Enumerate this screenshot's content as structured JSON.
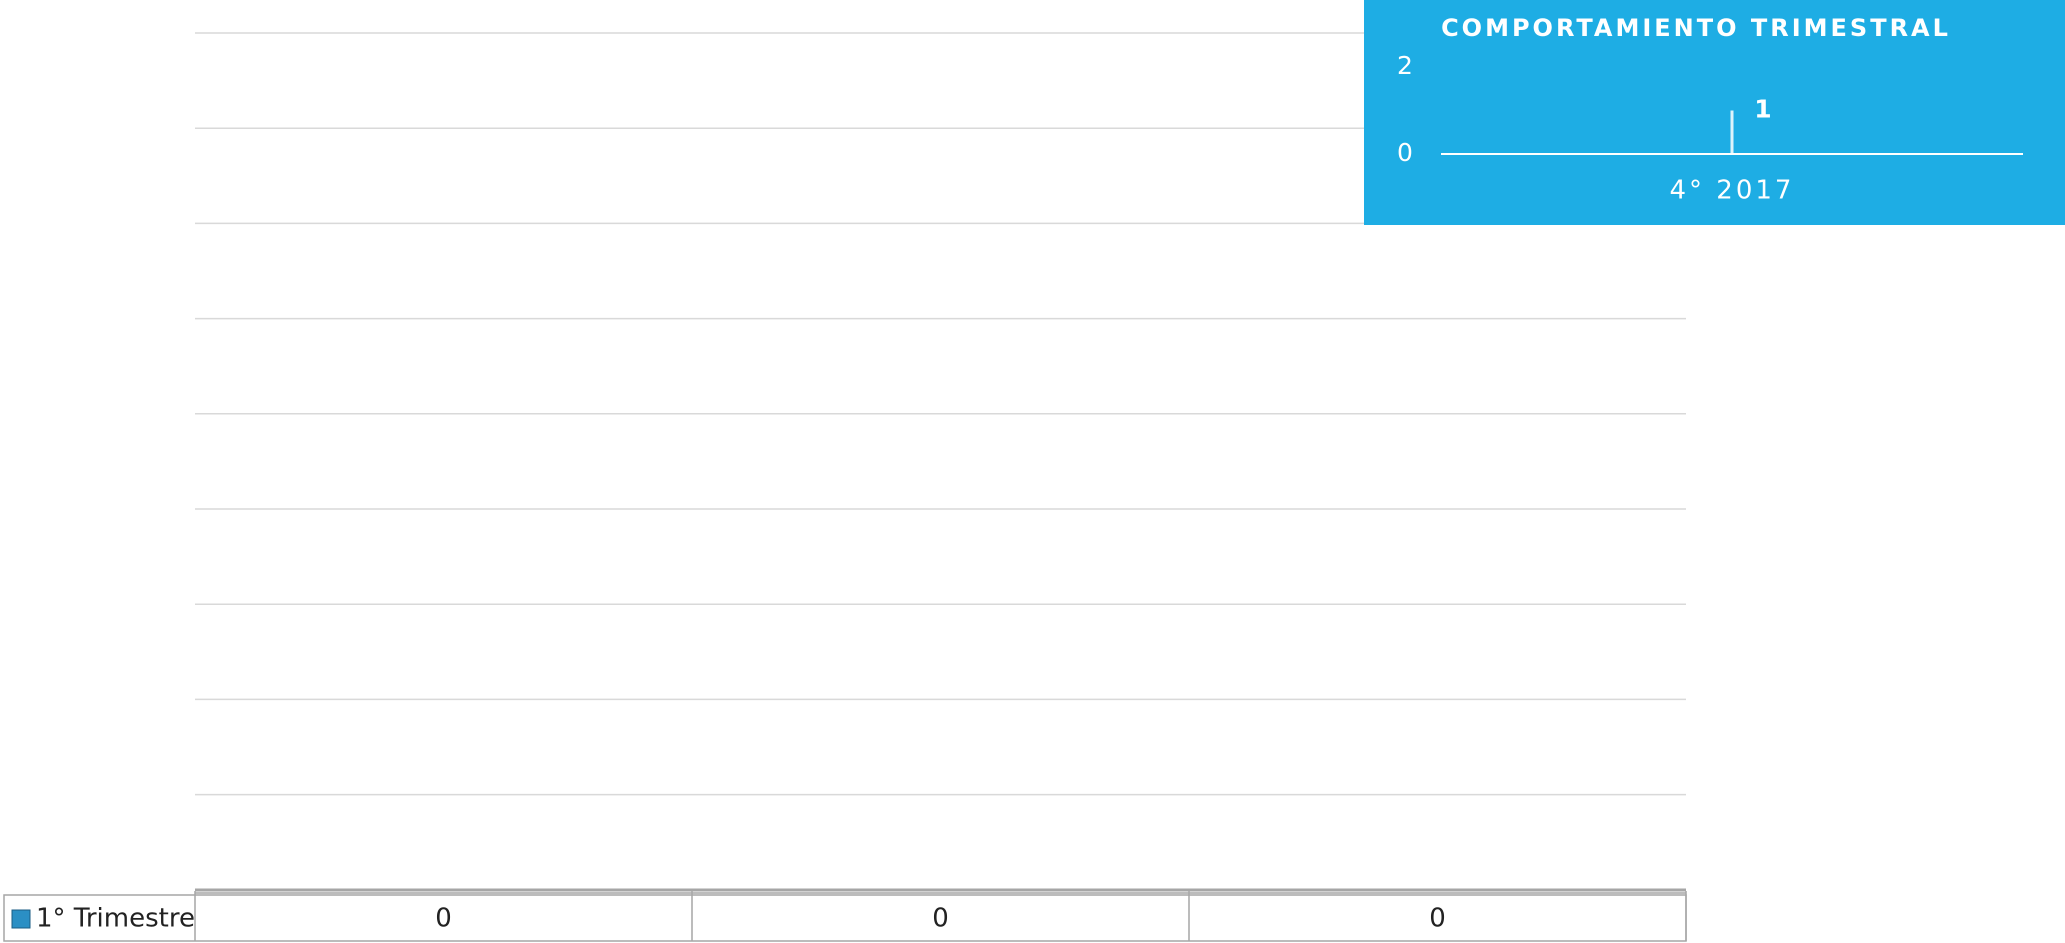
{
  "chart_data": [
    {
      "type": "bar",
      "categories": [
        null,
        null,
        null
      ],
      "series": [
        {
          "name": "1° Trimestre",
          "color": "#2b8fc4",
          "values": [
            0,
            0,
            0
          ]
        }
      ],
      "grid": true,
      "data_table": true
    },
    {
      "type": "bar",
      "title": "COMPORTAMIENTO TRIMESTRAL",
      "background": "#1eade4",
      "categories": [
        "4° 2017"
      ],
      "values": [
        1
      ],
      "color": "#ffffff",
      "ylim": [
        0,
        2
      ],
      "yticks": [
        0,
        2
      ]
    }
  ]
}
